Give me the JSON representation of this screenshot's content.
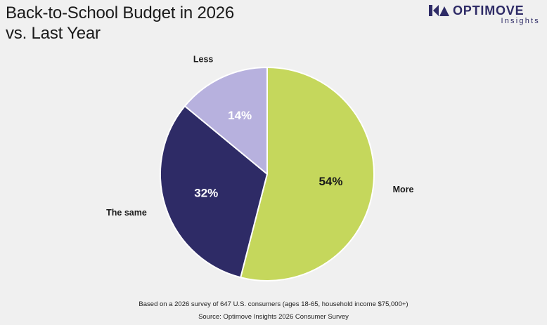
{
  "header": {
    "title_line1": "Back-to-School Budget in 2026",
    "title_line2": "vs. Last Year"
  },
  "logo": {
    "name": "OPTIMOVE",
    "sub": "Insights",
    "icon": "optimove-logo-icon",
    "color": "#2e2b66"
  },
  "chart_data": {
    "type": "pie",
    "start_angle_deg": 0,
    "direction": "clockwise",
    "slices": [
      {
        "label": "More",
        "value": 54,
        "pct_text": "54%",
        "color": "#c5d75c",
        "text_color": "#1a1a1a"
      },
      {
        "label": "The same",
        "value": 32,
        "pct_text": "32%",
        "color": "#2e2b66",
        "text_color": "#ffffff"
      },
      {
        "label": "Less",
        "value": 14,
        "pct_text": "14%",
        "color": "#b7b1de",
        "text_color": "#ffffff"
      }
    ]
  },
  "footnotes": {
    "survey": "Based on a 2026 survey of 647 U.S. consumers (ages 18-65, household income $75,000+)",
    "source": "Source: Optimove Insights 2026 Consumer Survey"
  }
}
